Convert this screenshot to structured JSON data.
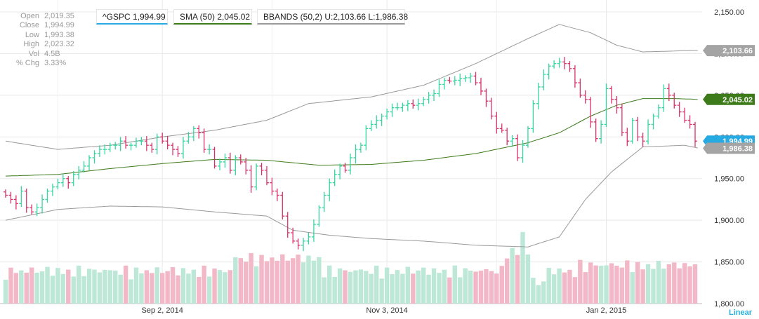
{
  "ohlc_panel": {
    "rows": [
      {
        "label": "Open",
        "value": "2,019.35"
      },
      {
        "label": "Close",
        "value": "1,994.99"
      },
      {
        "label": "Low",
        "value": "1,993.38"
      },
      {
        "label": "High",
        "value": "2,023.32"
      },
      {
        "label": "Vol",
        "value": "4.5B"
      },
      {
        "label": "% Chg",
        "value": "3.33%"
      }
    ]
  },
  "legend": {
    "gspc": "^GSPC 1,994.99",
    "sma": "SMA (50) 2,045.02",
    "bbands": "BBANDS (50,2) U:2,103.66 L:1,986.38"
  },
  "scale_mode": "Linear",
  "colors": {
    "up": "#36d6a0",
    "down": "#d8326a",
    "sma": "#3d7a1a",
    "bands": "#999999",
    "price_tag": "#27a9e1",
    "vol_up": "#bde8d8",
    "vol_down": "#f3b8c7",
    "grid": "#e8e8e8"
  },
  "chart_data": {
    "type": "ohlc",
    "title": "^GSPC",
    "ylim": [
      1800,
      2150
    ],
    "y_ticks": [
      1800,
      1850,
      1900,
      1950,
      2000,
      2050,
      2100,
      2150
    ],
    "y_tick_labels": [
      "1,800.00",
      "1,850.00",
      "1,900.00",
      "1,950.00",
      "2,000.00",
      "2,050.00",
      "2,100.00",
      "2,150.00"
    ],
    "x_ticks": [
      {
        "index": 30,
        "label": "Sep 2, 2014"
      },
      {
        "index": 73,
        "label": "Nov 3, 2014"
      },
      {
        "index": 115,
        "label": "Jan 2, 2015"
      }
    ],
    "price_series": [
      1930,
      1925,
      1920,
      1935,
      1915,
      1910,
      1915,
      1925,
      1935,
      1940,
      1945,
      1950,
      1945,
      1955,
      1960,
      1965,
      1975,
      1980,
      1985,
      1985,
      1990,
      1990,
      1995,
      1990,
      1990,
      1995,
      1995,
      1990,
      1985,
      2000,
      1995,
      1990,
      1985,
      1980,
      1995,
      2000,
      2010,
      2005,
      1985,
      1985,
      1965,
      1970,
      1975,
      1960,
      1975,
      1970,
      1960,
      1940,
      1965,
      1960,
      1945,
      1935,
      1930,
      1905,
      1885,
      1875,
      1870,
      1875,
      1880,
      1895,
      1915,
      1930,
      1945,
      1955,
      1965,
      1960,
      1975,
      1985,
      1990,
      2010,
      2015,
      2020,
      2025,
      2030,
      2035,
      2035,
      2038,
      2040,
      2038,
      2040,
      2045,
      2050,
      2052,
      2063,
      2068,
      2067,
      2068,
      2070,
      2071,
      2073,
      2065,
      2055,
      2043,
      2025,
      2010,
      2008,
      1995,
      1998,
      1975,
      1990,
      2010,
      2040,
      2060,
      2075,
      2085,
      2088,
      2090,
      2088,
      2082,
      2065,
      2050,
      2045,
      2018,
      1998,
      2015,
      2058,
      2045,
      2035,
      2005,
      1995,
      2020,
      2000,
      1995,
      2015,
      2025,
      2035,
      2058,
      2050,
      2038,
      2030,
      2020,
      2015,
      1995
    ],
    "sma_start": 1953,
    "sma_knots": [
      [
        0,
        1953
      ],
      [
        10,
        1955
      ],
      [
        20,
        1962
      ],
      [
        30,
        1968
      ],
      [
        40,
        1973
      ],
      [
        50,
        1972
      ],
      [
        60,
        1966
      ],
      [
        70,
        1967
      ],
      [
        80,
        1972
      ],
      [
        90,
        1980
      ],
      [
        100,
        1993
      ],
      [
        106,
        2005
      ],
      [
        112,
        2025
      ],
      [
        117,
        2038
      ],
      [
        122,
        2046
      ],
      [
        128,
        2046
      ],
      [
        133,
        2045
      ]
    ],
    "bb_upper_knots": [
      [
        0,
        1995
      ],
      [
        10,
        1985
      ],
      [
        20,
        1990
      ],
      [
        30,
        2000
      ],
      [
        40,
        2008
      ],
      [
        50,
        2020
      ],
      [
        58,
        2040
      ],
      [
        70,
        2048
      ],
      [
        80,
        2062
      ],
      [
        90,
        2088
      ],
      [
        100,
        2118
      ],
      [
        106,
        2135
      ],
      [
        112,
        2125
      ],
      [
        117,
        2110
      ],
      [
        122,
        2102
      ],
      [
        133,
        2104
      ]
    ],
    "bb_lower_knots": [
      [
        0,
        1900
      ],
      [
        10,
        1913
      ],
      [
        20,
        1917
      ],
      [
        30,
        1916
      ],
      [
        40,
        1910
      ],
      [
        50,
        1905
      ],
      [
        55,
        1888
      ],
      [
        62,
        1882
      ],
      [
        70,
        1878
      ],
      [
        80,
        1875
      ],
      [
        90,
        1870
      ],
      [
        100,
        1868
      ],
      [
        106,
        1880
      ],
      [
        111,
        1925
      ],
      [
        116,
        1958
      ],
      [
        122,
        1988
      ],
      [
        130,
        1990
      ],
      [
        133,
        1986
      ]
    ],
    "last": {
      "close": 1994.99,
      "sma": 2045.02,
      "upper": 2103.66,
      "lower": 1986.38
    },
    "tag_labels": {
      "upper": "2,103.66",
      "sma": "2,045.02",
      "close": "1,994.99",
      "lower": "1,986.38"
    }
  }
}
